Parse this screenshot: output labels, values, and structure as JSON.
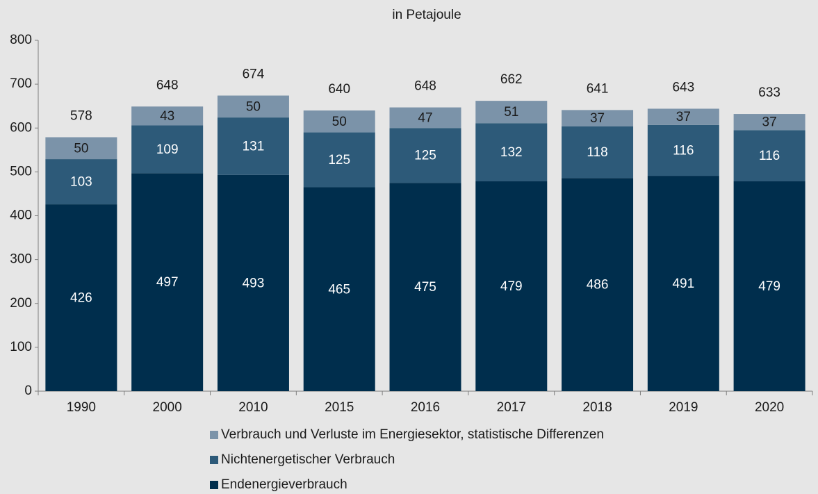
{
  "chart_data": {
    "type": "stacked_bar",
    "title": "in Petajoule",
    "categories": [
      "1990",
      "2000",
      "2010",
      "2015",
      "2016",
      "2017",
      "2018",
      "2019",
      "2020"
    ],
    "series": [
      {
        "name": "Endenergieverbrauch",
        "color": "#002e4d",
        "values": [
          426,
          497,
          493,
          465,
          475,
          479,
          486,
          491,
          479
        ]
      },
      {
        "name": "Nichtenergetischer Verbrauch",
        "color": "#2d5a79",
        "values": [
          103,
          109,
          131,
          125,
          125,
          132,
          118,
          116,
          116
        ]
      },
      {
        "name": "Verbrauch und Verluste im Energiesektor, statistische Differenzen",
        "color": "#7b93a9",
        "values": [
          50,
          43,
          50,
          50,
          47,
          51,
          37,
          37,
          37
        ]
      }
    ],
    "totals": [
      578,
      648,
      674,
      640,
      648,
      662,
      641,
      643,
      633
    ],
    "ylim": [
      0,
      800
    ],
    "yticks": [
      0,
      100,
      200,
      300,
      400,
      500,
      600,
      700,
      800
    ]
  }
}
